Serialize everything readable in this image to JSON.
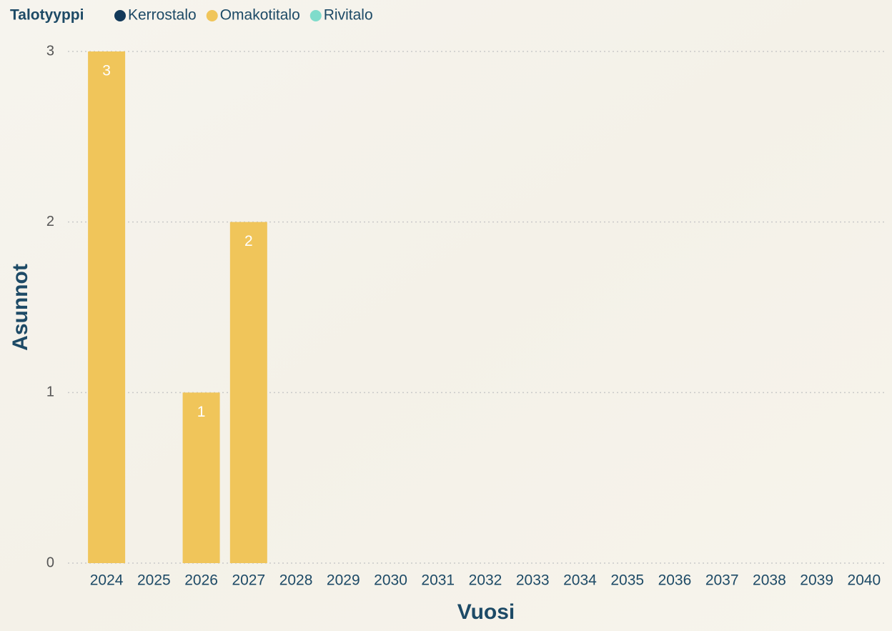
{
  "chart_data": {
    "type": "stacked-bar",
    "legend_title": "Talotyyppi",
    "x_label": "Vuosi",
    "y_label": "Asunnot",
    "categories": [
      "2024",
      "2025",
      "2026",
      "2027",
      "2028",
      "2029",
      "2030",
      "2031",
      "2032",
      "2033",
      "2034",
      "2035",
      "2036",
      "2037",
      "2038",
      "2039",
      "2040"
    ],
    "series": [
      {
        "name": "Kerrostalo",
        "color": "#12395a",
        "values": [
          null,
          null,
          null,
          null,
          null,
          null,
          null,
          null,
          null,
          null,
          null,
          null,
          null,
          null,
          null,
          null,
          null
        ]
      },
      {
        "name": "Omakotitalo",
        "color": "#f0c55a",
        "values": [
          3,
          null,
          1,
          2,
          null,
          null,
          null,
          null,
          null,
          null,
          null,
          null,
          null,
          null,
          null,
          null,
          null
        ]
      },
      {
        "name": "Rivitalo",
        "color": "#7fdccb",
        "values": [
          null,
          null,
          null,
          null,
          null,
          null,
          null,
          null,
          null,
          null,
          null,
          null,
          null,
          null,
          null,
          null,
          null
        ]
      }
    ],
    "ylim": [
      0,
      3
    ],
    "yticks": [
      0,
      1,
      2,
      3
    ],
    "grid": true
  }
}
